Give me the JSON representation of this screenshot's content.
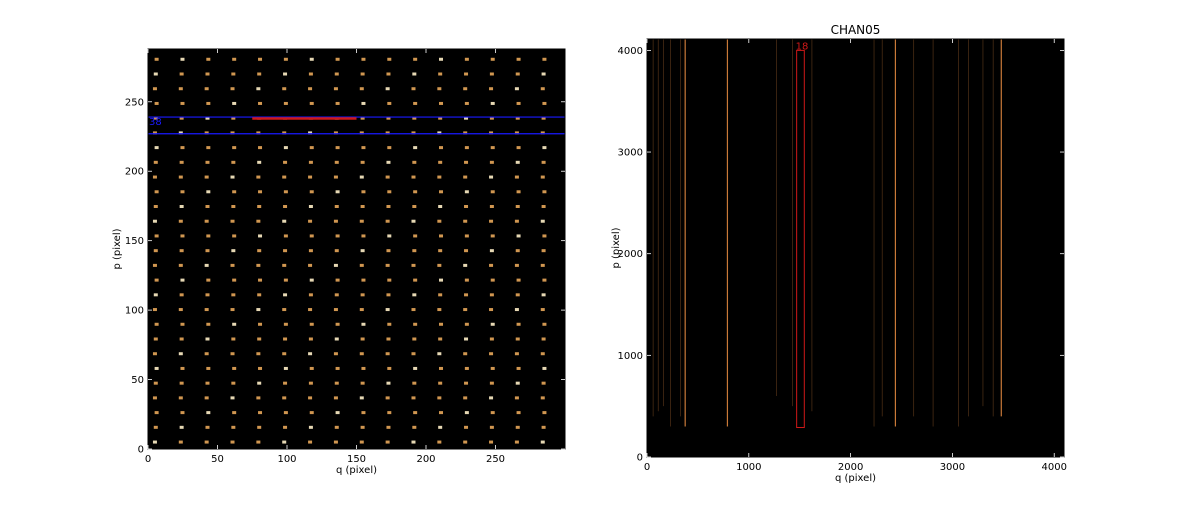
{
  "colors": {
    "background": "#000000",
    "spot": "#e8a75a",
    "spot_bright": "#fff0c8",
    "line_orange": "#d4803c",
    "blue_line": "#1a1aff",
    "red_marker": "#d01818",
    "tick_color": "#000000"
  },
  "chart_data": [
    {
      "type": "heatmap",
      "title": "",
      "xlabel": "q (pixel)",
      "ylabel": "p (pixel)",
      "xlim": [
        0,
        300
      ],
      "ylim": [
        0,
        288
      ],
      "xticks": [
        0,
        50,
        100,
        150,
        200,
        250
      ],
      "yticks": [
        0,
        50,
        100,
        150,
        200,
        250
      ],
      "grid": false,
      "spot_grid": {
        "x_start": 5,
        "x_step": 18.6,
        "x_count": 16,
        "y_start": 5,
        "y_step": 10.6,
        "y_count": 27
      },
      "band": {
        "label": "38",
        "y_lower": 227,
        "y_upper": 239,
        "color": "#1a1aff"
      },
      "segment": {
        "x": [
          75,
          150
        ],
        "y": 238,
        "color": "#d01818"
      }
    },
    {
      "type": "heatmap",
      "title": "CHAN05",
      "xlabel": "q (pixel)",
      "ylabel": "p (pixel)",
      "xlim": [
        0,
        4096
      ],
      "ylim": [
        0,
        4112
      ],
      "xticks": [
        0,
        1000,
        2000,
        3000,
        4000
      ],
      "yticks": [
        0,
        1000,
        2000,
        3000,
        4000
      ],
      "grid": false,
      "bright_lines": [
        {
          "x": 375,
          "y0": 300,
          "y1": 4112
        },
        {
          "x": 790,
          "y0": 300,
          "y1": 4112
        },
        {
          "x": 2440,
          "y0": 300,
          "y1": 4112
        },
        {
          "x": 3480,
          "y0": 400,
          "y1": 4112
        }
      ],
      "faint_lines": [
        {
          "x": 60,
          "y0": 400,
          "y1": 4112
        },
        {
          "x": 110,
          "y0": 450,
          "y1": 4112
        },
        {
          "x": 160,
          "y0": 500,
          "y1": 4112
        },
        {
          "x": 230,
          "y0": 300,
          "y1": 4112
        },
        {
          "x": 330,
          "y0": 400,
          "y1": 4112
        },
        {
          "x": 1270,
          "y0": 600,
          "y1": 4112
        },
        {
          "x": 1430,
          "y0": 500,
          "y1": 4112
        },
        {
          "x": 1620,
          "y0": 450,
          "y1": 4112
        },
        {
          "x": 2230,
          "y0": 300,
          "y1": 4112
        },
        {
          "x": 2310,
          "y0": 400,
          "y1": 4112
        },
        {
          "x": 2620,
          "y0": 400,
          "y1": 4112
        },
        {
          "x": 2810,
          "y0": 300,
          "y1": 4112
        },
        {
          "x": 3060,
          "y0": 300,
          "y1": 4112
        },
        {
          "x": 3160,
          "y0": 400,
          "y1": 4112
        },
        {
          "x": 3300,
          "y0": 500,
          "y1": 4112
        },
        {
          "x": 3400,
          "y0": 400,
          "y1": 4112
        }
      ],
      "box": {
        "label": "18",
        "x": [
          1470,
          1545
        ],
        "y": [
          290,
          4000
        ],
        "color": "#d01818"
      }
    }
  ]
}
